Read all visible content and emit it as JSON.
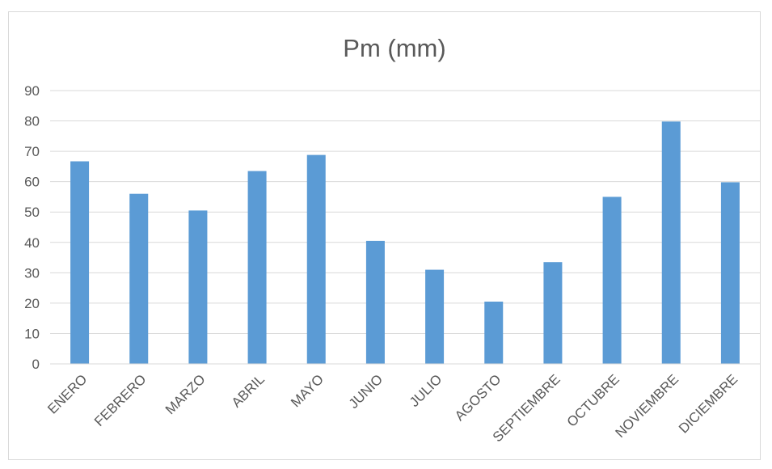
{
  "chart_data": {
    "type": "bar",
    "title": "Pm (mm)",
    "xlabel": "",
    "ylabel": "",
    "categories": [
      "ENERO",
      "FEBRERO",
      "MARZO",
      "ABRIL",
      "MAYO",
      "JUNIO",
      "JULIO",
      "AGOSTO",
      "SEPTIEMBRE",
      "OCTUBRE",
      "NOVIEMBRE",
      "DICIEMBRE"
    ],
    "values": [
      66.7,
      56.0,
      50.5,
      63.5,
      68.8,
      40.5,
      31.0,
      20.5,
      33.5,
      55.0,
      79.8,
      59.8
    ],
    "ylim": [
      0,
      90
    ],
    "yticks": [
      0,
      10,
      20,
      30,
      40,
      50,
      60,
      70,
      80,
      90
    ],
    "grid": true,
    "legend": "none",
    "bar_color": "#5b9bd5",
    "grid_color": "#d9d9d9"
  }
}
